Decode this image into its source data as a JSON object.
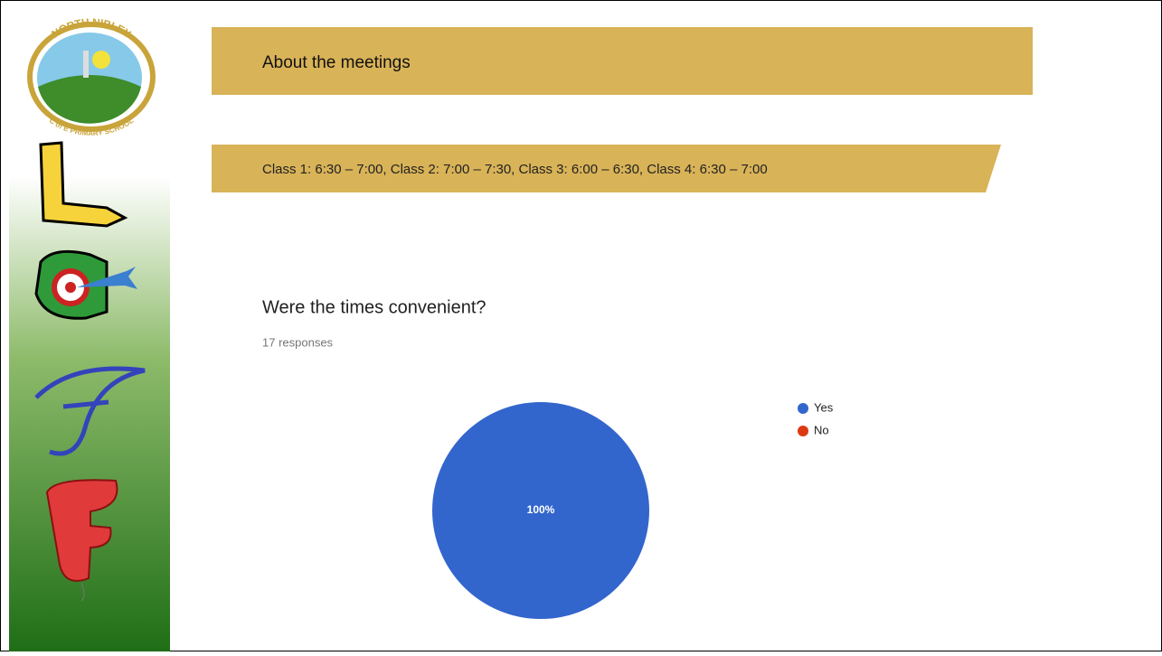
{
  "logo": {
    "top": "NORTH NIBLEY",
    "bottom": "C of E PRIMARY SCHOOL"
  },
  "header": {
    "title": "About the meetings",
    "banner": "Class 1: 6:30 – 7:00, Class 2: 7:00 – 7:30, Class 3: 6:00 – 6:30, Class 4: 6:30 – 7:00"
  },
  "chart_data": {
    "type": "pie",
    "title": "Were the times convenient?",
    "subtitle": "17 responses",
    "categories": [
      "Yes",
      "No"
    ],
    "values": [
      100,
      0
    ],
    "value_labels": [
      "100%",
      null
    ],
    "colors": [
      "#3366cc",
      "#dc3912"
    ],
    "legend": "right"
  }
}
